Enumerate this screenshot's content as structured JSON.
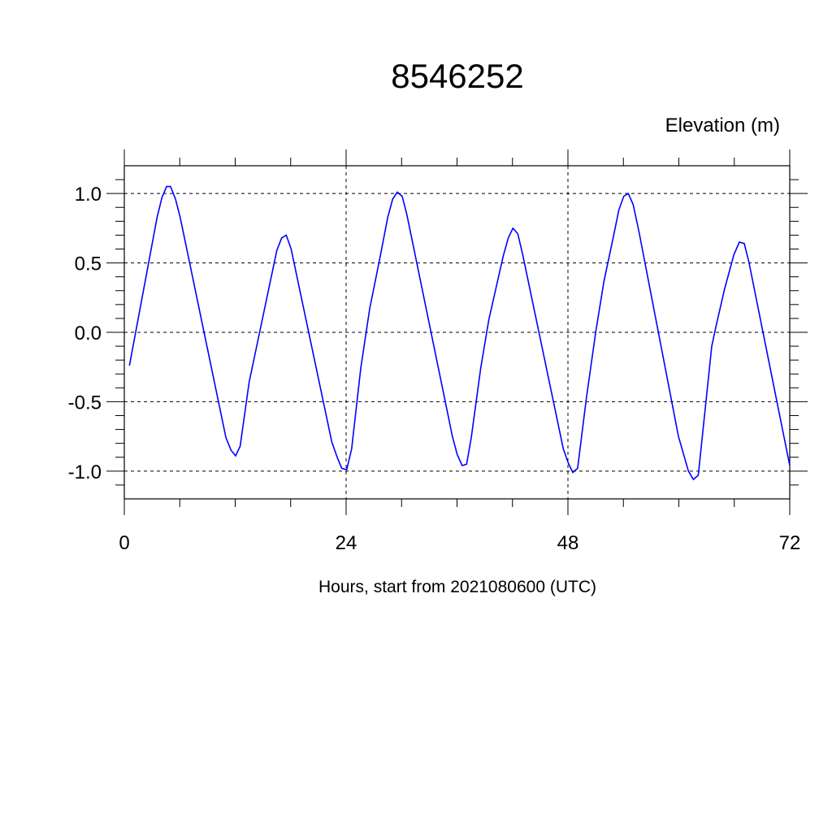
{
  "chart_data": {
    "type": "line",
    "title": "8546252",
    "ylabel": "Elevation (m)",
    "xlabel": "Hours, start from 2021080600 (UTC)",
    "xlim": [
      0,
      72
    ],
    "ylim": [
      -1.2,
      1.2
    ],
    "x_ticks": [
      0,
      24,
      48,
      72
    ],
    "x_tick_labels": [
      "0",
      "24",
      "48",
      "72"
    ],
    "y_ticks": [
      -1.0,
      -0.5,
      0.0,
      0.5,
      1.0
    ],
    "y_tick_labels": [
      "-1.0",
      "-0.5",
      "0.0",
      "0.5",
      "1.0"
    ],
    "grid": "dashed at major ticks",
    "line_color": "#0000ff",
    "series": [
      {
        "x": [
          0.55,
          3.55,
          4.07,
          4.57,
          5.0,
          5.54,
          6.04,
          11.0,
          11.55,
          12.04,
          12.54,
          13.5,
          16.5,
          17.03,
          17.52,
          18.05,
          22.45,
          23.03,
          23.53,
          24.06,
          24.6,
          25.58,
          26.55,
          27.58,
          28.51,
          29.04,
          29.54,
          30.07,
          30.57,
          35.5,
          36.02,
          36.55,
          37.04,
          37.54,
          38.56,
          39.44,
          41.0,
          41.55,
          42.05,
          42.58,
          43.1,
          47.5,
          48.03,
          48.53,
          49.05,
          50.0,
          51.02,
          51.9,
          52.92,
          53.5,
          54.04,
          54.53,
          55.06,
          55.7,
          59.96,
          61.04,
          61.57,
          62.1,
          63.56,
          63.97,
          64.94,
          65.96,
          66.55,
          67.08,
          67.57,
          72.0
        ],
        "y": [
          -0.24,
          0.83,
          0.97,
          1.05,
          1.05,
          0.96,
          0.83,
          -0.76,
          -0.85,
          -0.89,
          -0.82,
          -0.36,
          0.59,
          0.68,
          0.7,
          0.6,
          -0.79,
          -0.9,
          -0.98,
          -0.99,
          -0.84,
          -0.26,
          0.17,
          0.51,
          0.83,
          0.96,
          1.01,
          0.98,
          0.85,
          -0.75,
          -0.88,
          -0.96,
          -0.95,
          -0.76,
          -0.26,
          0.09,
          0.55,
          0.68,
          0.75,
          0.71,
          0.56,
          -0.84,
          -0.94,
          -1.01,
          -0.98,
          -0.47,
          0.01,
          0.37,
          0.69,
          0.88,
          0.98,
          1.0,
          0.92,
          0.72,
          -0.75,
          -1.0,
          -1.06,
          -1.03,
          -0.1,
          0.03,
          0.31,
          0.56,
          0.65,
          0.64,
          0.51,
          -0.96
        ]
      }
    ]
  }
}
